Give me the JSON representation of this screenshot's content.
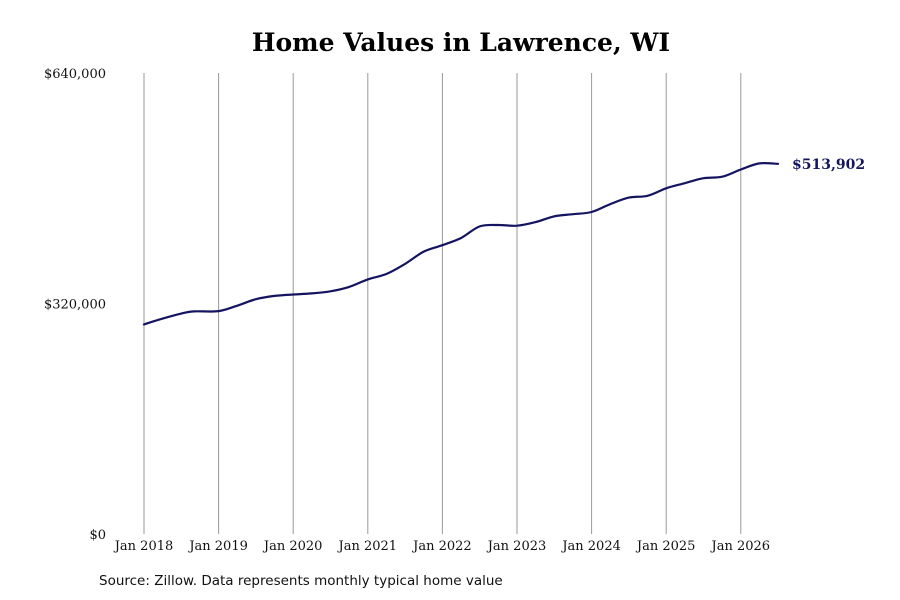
{
  "chart_data": {
    "type": "line",
    "title": "Home Values in Lawrence, WI",
    "xlabel": "",
    "ylabel": "",
    "ylim": [
      0,
      640000
    ],
    "xlim": [
      "2018-01",
      "2026-07"
    ],
    "y_ticks": [
      {
        "value": 0,
        "label": "$0"
      },
      {
        "value": 320000,
        "label": "$320,000"
      },
      {
        "value": 640000,
        "label": "$640,000"
      }
    ],
    "x_ticks": [
      {
        "date": "2018-01",
        "label": "Jan 2018"
      },
      {
        "date": "2019-01",
        "label": "Jan 2019"
      },
      {
        "date": "2020-01",
        "label": "Jan 2020"
      },
      {
        "date": "2021-01",
        "label": "Jan 2021"
      },
      {
        "date": "2022-01",
        "label": "Jan 2022"
      },
      {
        "date": "2023-01",
        "label": "Jan 2023"
      },
      {
        "date": "2024-01",
        "label": "Jan 2024"
      },
      {
        "date": "2025-01",
        "label": "Jan 2025"
      },
      {
        "date": "2026-01",
        "label": "Jan 2026"
      }
    ],
    "grid": "vertical",
    "line_color": "#141461",
    "grid_color": "#999999",
    "series": [
      {
        "name": "",
        "points": [
          [
            "2018-01",
            291000
          ],
          [
            "2018-04",
            299000
          ],
          [
            "2018-07",
            306000
          ],
          [
            "2018-09",
            309000
          ],
          [
            "2019-01",
            309500
          ],
          [
            "2019-04",
            317000
          ],
          [
            "2019-07",
            326000
          ],
          [
            "2019-10",
            330500
          ],
          [
            "2020-01",
            332500
          ],
          [
            "2020-04",
            334000
          ],
          [
            "2020-07",
            337000
          ],
          [
            "2020-10",
            343000
          ],
          [
            "2021-01",
            353500
          ],
          [
            "2021-04",
            361000
          ],
          [
            "2021-07",
            375000
          ],
          [
            "2021-10",
            392000
          ],
          [
            "2022-01",
            401000
          ],
          [
            "2022-04",
            411000
          ],
          [
            "2022-07",
            427000
          ],
          [
            "2022-10",
            429000
          ],
          [
            "2023-01",
            428000
          ],
          [
            "2023-04",
            433000
          ],
          [
            "2023-07",
            441000
          ],
          [
            "2023-10",
            444000
          ],
          [
            "2024-01",
            447000
          ],
          [
            "2024-04",
            458000
          ],
          [
            "2024-07",
            467000
          ],
          [
            "2024-10",
            469500
          ],
          [
            "2025-01",
            480000
          ],
          [
            "2025-04",
            487000
          ],
          [
            "2025-07",
            494000
          ],
          [
            "2025-10",
            496000
          ],
          [
            "2026-01",
            506000
          ],
          [
            "2026-04",
            514500
          ],
          [
            "2026-07",
            513902
          ]
        ]
      }
    ],
    "end_label": "$513,902"
  },
  "source_text": "Source: Zillow. Data represents monthly typical home value"
}
